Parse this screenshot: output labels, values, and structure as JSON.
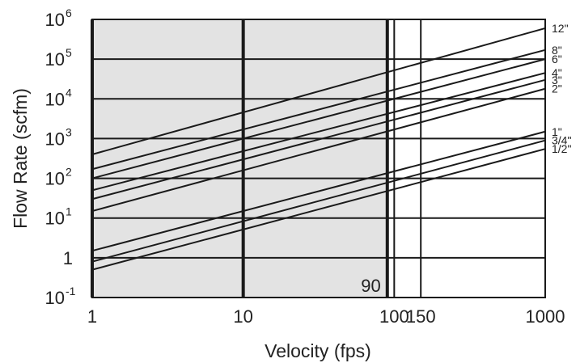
{
  "chart_data": {
    "type": "line",
    "title": "",
    "xlabel": "Velocity (fps)",
    "ylabel": "Flow Rate (scfm)",
    "x_scale": "log",
    "y_scale": "log",
    "xlim": [
      1,
      1000
    ],
    "ylim": [
      0.1,
      1000000
    ],
    "grid": true,
    "x_ticks": [
      {
        "value": 1,
        "label": "1"
      },
      {
        "value": 10,
        "label": "10"
      },
      {
        "value": 100,
        "label": "100"
      },
      {
        "value": 150,
        "label": "150"
      },
      {
        "value": 1000,
        "label": "1000"
      }
    ],
    "y_ticks": [
      {
        "value": 0.1,
        "base": "10",
        "exp": "-1"
      },
      {
        "value": 1,
        "base": "1",
        "exp": ""
      },
      {
        "value": 10,
        "base": "10",
        "exp": "1"
      },
      {
        "value": 100,
        "base": "10",
        "exp": "2"
      },
      {
        "value": 1000,
        "base": "10",
        "exp": "3"
      },
      {
        "value": 10000,
        "base": "10",
        "exp": "4"
      },
      {
        "value": 100000,
        "base": "10",
        "exp": "5"
      },
      {
        "value": 1000000,
        "base": "10",
        "exp": "6"
      }
    ],
    "shaded_region": {
      "x": [
        1,
        90
      ],
      "color": "#e3e3e3"
    },
    "vertical_markers": [
      90
    ],
    "annotations": [
      {
        "text": "90"
      }
    ],
    "series_color": "#1a1a1a",
    "series": [
      {
        "name": "12\"",
        "x": [
          1,
          1000
        ],
        "y": [
          400,
          600000
        ]
      },
      {
        "name": "8\"",
        "x": [
          1,
          1000
        ],
        "y": [
          170,
          170000
        ]
      },
      {
        "name": "6\"",
        "x": [
          1,
          1000
        ],
        "y": [
          100,
          100000
        ]
      },
      {
        "name": "4\"",
        "x": [
          1,
          1000
        ],
        "y": [
          50,
          45000
        ]
      },
      {
        "name": "3\"",
        "x": [
          1,
          1000
        ],
        "y": [
          30,
          30000
        ]
      },
      {
        "name": "2\"",
        "x": [
          1,
          1000
        ],
        "y": [
          15,
          18000
        ]
      },
      {
        "name": "1\"",
        "x": [
          1,
          1000
        ],
        "y": [
          1.5,
          1500
        ]
      },
      {
        "name": "3/4\"",
        "x": [
          1,
          1000
        ],
        "y": [
          0.8,
          900
        ]
      },
      {
        "name": "1/2\"",
        "x": [
          1,
          1000
        ],
        "y": [
          0.5,
          550
        ]
      }
    ]
  }
}
